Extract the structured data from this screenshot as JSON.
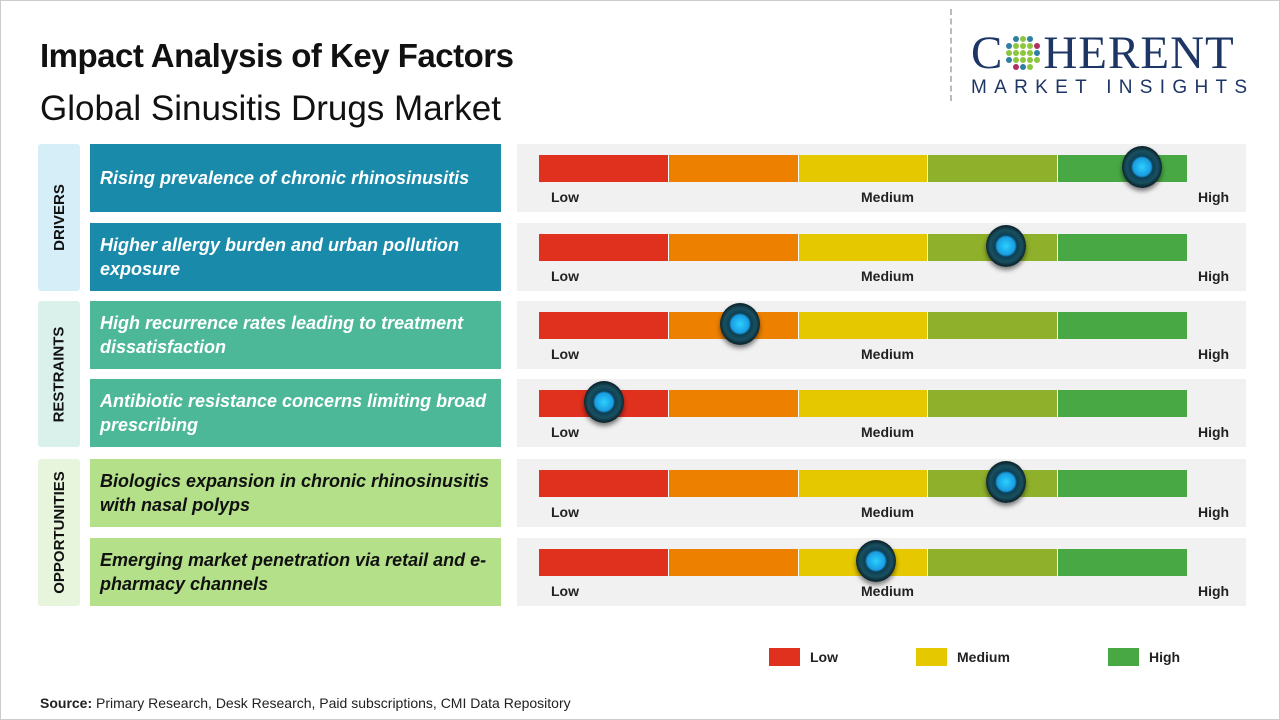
{
  "header": {
    "title": "Impact Analysis of Key Factors",
    "subtitle": "Global Sinusitis Drugs Market"
  },
  "logo": {
    "line1_a": "C",
    "line1_b": "HERENT",
    "line2": "MARKET INSIGHTS"
  },
  "colors": {
    "low": "#e0301e",
    "low_medium": "#ee8000",
    "medium": "#e6c800",
    "medium_high": "#8fb02a",
    "high": "#48a844",
    "drivers": "#1a8aaa",
    "restraints": "#4db898",
    "opportunities": "#b5e08a"
  },
  "chart_data": {
    "type": "gauge-bars",
    "scale_labels": {
      "low": "Low",
      "medium": "Medium",
      "high": "High"
    },
    "categories": [
      {
        "name": "DRIVERS",
        "color": "#1a8aaa",
        "bg": "#d6eef8",
        "text_color": "#ffffff",
        "factors": [
          {
            "label": "Rising prevalence of chronic rhinosinusitis",
            "impact": 0.93
          },
          {
            "label": "Higher allergy burden and urban pollution exposure",
            "impact": 0.72
          }
        ]
      },
      {
        "name": "RESTRAINTS",
        "color": "#4db898",
        "bg": "#d9f1ea",
        "text_color": "#ffffff",
        "factors": [
          {
            "label": "High recurrence rates leading to treatment dissatisfaction",
            "impact": 0.31
          },
          {
            "label": "Antibiotic resistance concerns limiting broad prescribing",
            "impact": 0.1
          }
        ]
      },
      {
        "name": "OPPORTUNITIES",
        "color": "#b5e08a",
        "bg": "#e6f5dc",
        "text_color": "#111111",
        "factors": [
          {
            "label": "Biologics expansion in chronic rhinosinusitis with nasal polyps",
            "impact": 0.72
          },
          {
            "label": "Emerging market penetration via retail and e-pharmacy channels",
            "impact": 0.52
          }
        ]
      }
    ],
    "legend": [
      {
        "label": "Low",
        "color": "#e0301e"
      },
      {
        "label": "Medium",
        "color": "#e6c800"
      },
      {
        "label": "High",
        "color": "#48a844"
      }
    ]
  },
  "source": {
    "label": "Source:",
    "text": " Primary Research, Desk Research, Paid subscriptions, CMI Data Repository"
  }
}
